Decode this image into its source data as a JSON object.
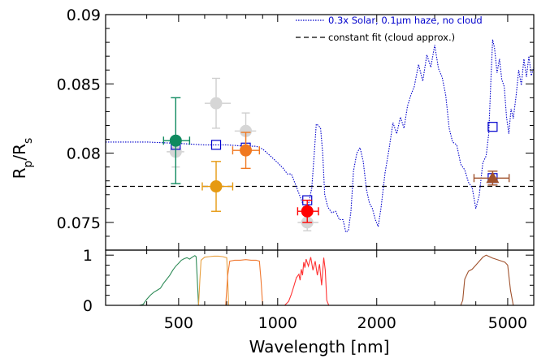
{
  "chart_data": {
    "type": "scatter",
    "x_scale": "log",
    "xlabel": "Wavelength [nm]",
    "ylabel_main": "R",
    "ylabel_sub1": "p",
    "ylabel_mid": "/R",
    "ylabel_sub2": "s",
    "xlim": [
      300,
      6000
    ],
    "ylim": [
      0.073,
      0.09
    ],
    "x_ticks": [
      500,
      1000,
      2000,
      5000
    ],
    "x_tick_labels": [
      "500",
      "1000",
      "2000",
      "5000"
    ],
    "y_ticks": [
      0.075,
      0.08,
      0.085,
      0.09
    ],
    "y_tick_labels": [
      "0.075",
      "0.08",
      "0.085",
      "0.09"
    ],
    "lower_panel": {
      "ylim": [
        0,
        1.1
      ],
      "y_ticks": [
        0,
        1
      ],
      "y_tick_labels": [
        "0",
        "1"
      ]
    },
    "legend_position": "top-right",
    "legend": [
      {
        "label": "0.3x Solar, 0.1μm haze, no cloud",
        "style": "dotted",
        "color": "#0000cc"
      },
      {
        "label": "constant fit (cloud approx.)",
        "style": "dashed",
        "color": "#000000"
      }
    ],
    "constant_fit": 0.0776,
    "model_band_points": [
      {
        "x": 490,
        "y": 0.0806
      },
      {
        "x": 650,
        "y": 0.0806
      },
      {
        "x": 800,
        "y": 0.0804
      },
      {
        "x": 1230,
        "y": 0.0766
      },
      {
        "x": 4500,
        "y": 0.0782
      },
      {
        "x": 4500,
        "y": 0.0819
      }
    ],
    "model_spectrum": [
      [
        300,
        0.0808
      ],
      [
        400,
        0.0808
      ],
      [
        500,
        0.0807
      ],
      [
        600,
        0.0806
      ],
      [
        700,
        0.0806
      ],
      [
        800,
        0.0805
      ],
      [
        860,
        0.0805
      ],
      [
        900,
        0.0803
      ],
      [
        950,
        0.0798
      ],
      [
        1000,
        0.0793
      ],
      [
        1040,
        0.0789
      ],
      [
        1070,
        0.0785
      ],
      [
        1100,
        0.0785
      ],
      [
        1130,
        0.0778
      ],
      [
        1160,
        0.0771
      ],
      [
        1190,
        0.0764
      ],
      [
        1220,
        0.0756
      ],
      [
        1250,
        0.0767
      ],
      [
        1270,
        0.0775
      ],
      [
        1290,
        0.0798
      ],
      [
        1310,
        0.0821
      ],
      [
        1330,
        0.082
      ],
      [
        1350,
        0.0818
      ],
      [
        1370,
        0.08
      ],
      [
        1390,
        0.077
      ],
      [
        1420,
        0.0761
      ],
      [
        1460,
        0.0757
      ],
      [
        1500,
        0.0758
      ],
      [
        1540,
        0.0752
      ],
      [
        1580,
        0.0752
      ],
      [
        1610,
        0.0743
      ],
      [
        1640,
        0.0744
      ],
      [
        1670,
        0.0758
      ],
      [
        1700,
        0.0787
      ],
      [
        1740,
        0.08
      ],
      [
        1780,
        0.0804
      ],
      [
        1820,
        0.0794
      ],
      [
        1860,
        0.0774
      ],
      [
        1900,
        0.0764
      ],
      [
        1940,
        0.076
      ],
      [
        1980,
        0.0752
      ],
      [
        2020,
        0.0747
      ],
      [
        2060,
        0.076
      ],
      [
        2120,
        0.0786
      ],
      [
        2180,
        0.0803
      ],
      [
        2240,
        0.0822
      ],
      [
        2300,
        0.0814
      ],
      [
        2360,
        0.0826
      ],
      [
        2420,
        0.0818
      ],
      [
        2480,
        0.0834
      ],
      [
        2540,
        0.0842
      ],
      [
        2600,
        0.0848
      ],
      [
        2680,
        0.0864
      ],
      [
        2760,
        0.0852
      ],
      [
        2840,
        0.0871
      ],
      [
        2920,
        0.0862
      ],
      [
        3000,
        0.0878
      ],
      [
        3080,
        0.0861
      ],
      [
        3160,
        0.0855
      ],
      [
        3240,
        0.0842
      ],
      [
        3320,
        0.0818
      ],
      [
        3400,
        0.0808
      ],
      [
        3500,
        0.0806
      ],
      [
        3600,
        0.0792
      ],
      [
        3700,
        0.0788
      ],
      [
        3800,
        0.0779
      ],
      [
        3900,
        0.0775
      ],
      [
        4000,
        0.076
      ],
      [
        4100,
        0.077
      ],
      [
        4200,
        0.0793
      ],
      [
        4300,
        0.0798
      ],
      [
        4380,
        0.0814
      ],
      [
        4450,
        0.0855
      ],
      [
        4500,
        0.0882
      ],
      [
        4560,
        0.0876
      ],
      [
        4640,
        0.0858
      ],
      [
        4720,
        0.0868
      ],
      [
        4800,
        0.0853
      ],
      [
        4880,
        0.0848
      ],
      [
        4960,
        0.0826
      ],
      [
        5040,
        0.0814
      ],
      [
        5120,
        0.0832
      ],
      [
        5200,
        0.0825
      ],
      [
        5300,
        0.0841
      ],
      [
        5400,
        0.086
      ],
      [
        5500,
        0.0849
      ],
      [
        5600,
        0.0868
      ],
      [
        5700,
        0.0855
      ],
      [
        5800,
        0.087
      ],
      [
        5900,
        0.0856
      ],
      [
        6000,
        0.0862
      ]
    ],
    "faint_points": [
      {
        "x": 490,
        "y": 0.0801,
        "yerr": 0.0011,
        "xerr": [
          460,
          520
        ]
      },
      {
        "x": 650,
        "y": 0.0836,
        "yerr": 0.0018,
        "xerr": [
          600,
          720
        ]
      },
      {
        "x": 800,
        "y": 0.0816,
        "yerr": 0.0013,
        "xerr": [
          740,
          860
        ]
      },
      {
        "x": 1230,
        "y": 0.075,
        "yerr": 0.0006,
        "xerr": [
          1150,
          1330
        ]
      }
    ],
    "measurements": [
      {
        "x": 490,
        "y": 0.0809,
        "yerr": 0.0031,
        "xerr": [
          450,
          540
        ],
        "color": "#0f8a5f"
      },
      {
        "x": 650,
        "y": 0.0776,
        "yerr": 0.0018,
        "xerr": [
          590,
          730
        ],
        "color": "#e69a12"
      },
      {
        "x": 800,
        "y": 0.0802,
        "yerr": 0.0013,
        "xerr": [
          730,
          880
        ],
        "color": "#f07820"
      },
      {
        "x": 1230,
        "y": 0.0758,
        "yerr": 0.0008,
        "xerr": [
          1150,
          1330
        ],
        "color": "#ff0000"
      },
      {
        "x": 4500,
        "y": 0.0782,
        "yerr": 0.0005,
        "xerr": [
          3950,
          5050
        ],
        "color": "#a0522d"
      }
    ],
    "filters": [
      {
        "name": "green",
        "color": "#2e8b57",
        "points": [
          [
            380,
            0.0
          ],
          [
            390,
            0.02
          ],
          [
            400,
            0.12
          ],
          [
            410,
            0.2
          ],
          [
            420,
            0.26
          ],
          [
            430,
            0.3
          ],
          [
            440,
            0.34
          ],
          [
            450,
            0.44
          ],
          [
            460,
            0.52
          ],
          [
            470,
            0.6
          ],
          [
            480,
            0.7
          ],
          [
            490,
            0.78
          ],
          [
            500,
            0.84
          ],
          [
            510,
            0.9
          ],
          [
            520,
            0.93
          ],
          [
            530,
            0.95
          ],
          [
            540,
            0.92
          ],
          [
            550,
            0.96
          ],
          [
            560,
            0.99
          ],
          [
            565,
            0.97
          ],
          [
            570,
            0.5
          ],
          [
            575,
            0.0
          ]
        ]
      },
      {
        "name": "orange",
        "color": "#e8a040",
        "points": [
          [
            575,
            0.0
          ],
          [
            580,
            0.5
          ],
          [
            585,
            0.9
          ],
          [
            600,
            0.96
          ],
          [
            620,
            0.97
          ],
          [
            640,
            0.98
          ],
          [
            660,
            0.98
          ],
          [
            680,
            0.97
          ],
          [
            700,
            0.95
          ],
          [
            705,
            0.5
          ],
          [
            710,
            0.0
          ]
        ]
      },
      {
        "name": "orange-red",
        "color": "#f07830",
        "points": [
          [
            695,
            0.0
          ],
          [
            705,
            0.6
          ],
          [
            715,
            0.88
          ],
          [
            740,
            0.9
          ],
          [
            770,
            0.9
          ],
          [
            800,
            0.91
          ],
          [
            830,
            0.9
          ],
          [
            860,
            0.9
          ],
          [
            880,
            0.88
          ],
          [
            890,
            0.5
          ],
          [
            900,
            0.0
          ]
        ]
      },
      {
        "name": "red",
        "color": "#ff3333",
        "points": [
          [
            1050,
            0.0
          ],
          [
            1080,
            0.08
          ],
          [
            1100,
            0.22
          ],
          [
            1120,
            0.38
          ],
          [
            1140,
            0.55
          ],
          [
            1160,
            0.62
          ],
          [
            1170,
            0.5
          ],
          [
            1180,
            0.72
          ],
          [
            1190,
            0.6
          ],
          [
            1200,
            0.86
          ],
          [
            1210,
            0.75
          ],
          [
            1220,
            0.92
          ],
          [
            1240,
            0.78
          ],
          [
            1260,
            0.96
          ],
          [
            1280,
            0.7
          ],
          [
            1300,
            0.88
          ],
          [
            1320,
            0.6
          ],
          [
            1340,
            0.82
          ],
          [
            1360,
            0.4
          ],
          [
            1380,
            0.95
          ],
          [
            1395,
            0.7
          ],
          [
            1410,
            0.1
          ],
          [
            1430,
            0.0
          ]
        ]
      },
      {
        "name": "brown",
        "color": "#a0522d",
        "points": [
          [
            3600,
            0.0
          ],
          [
            3650,
            0.1
          ],
          [
            3700,
            0.52
          ],
          [
            3800,
            0.68
          ],
          [
            3900,
            0.72
          ],
          [
            4000,
            0.8
          ],
          [
            4100,
            0.88
          ],
          [
            4200,
            0.96
          ],
          [
            4300,
            1.0
          ],
          [
            4400,
            0.97
          ],
          [
            4500,
            0.94
          ],
          [
            4600,
            0.92
          ],
          [
            4700,
            0.9
          ],
          [
            4800,
            0.88
          ],
          [
            4900,
            0.86
          ],
          [
            5000,
            0.8
          ],
          [
            5100,
            0.3
          ],
          [
            5200,
            0.0
          ]
        ]
      }
    ]
  }
}
